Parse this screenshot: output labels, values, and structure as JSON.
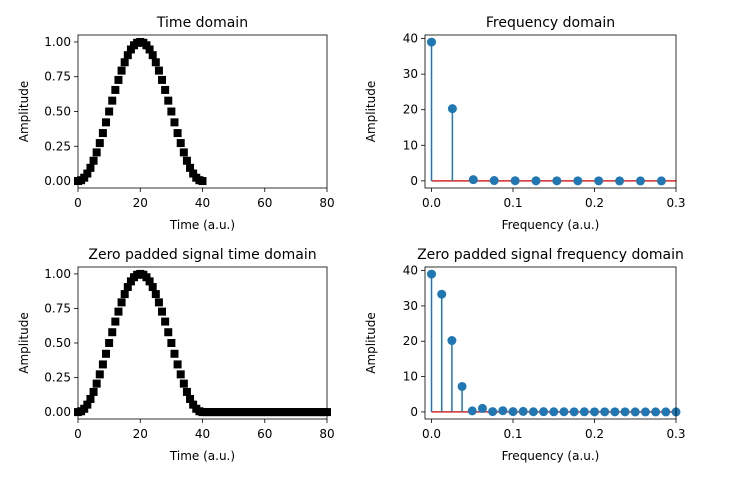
{
  "chart_data": [
    {
      "type": "scatter",
      "title": "Time domain",
      "xlabel": "Time (a.u.)",
      "ylabel": "Amplitude",
      "xlim": [
        0,
        80
      ],
      "ylim": [
        -0.05,
        1.05
      ],
      "xticks": [
        "0",
        "20",
        "40",
        "60",
        "80"
      ],
      "yticks": [
        "0.00",
        "0.25",
        "0.50",
        "0.75",
        "1.00"
      ],
      "marker": "square",
      "color": "#000000",
      "x": [
        0,
        1,
        2,
        3,
        4,
        5,
        6,
        7,
        8,
        9,
        10,
        11,
        12,
        13,
        14,
        15,
        16,
        17,
        18,
        19,
        20,
        21,
        22,
        23,
        24,
        25,
        26,
        27,
        28,
        29,
        30,
        31,
        32,
        33,
        34,
        35,
        36,
        37,
        38,
        39,
        40
      ],
      "y": [
        0.0,
        0.006,
        0.024,
        0.054,
        0.095,
        0.146,
        0.206,
        0.273,
        0.345,
        0.422,
        0.5,
        0.578,
        0.655,
        0.727,
        0.794,
        0.854,
        0.905,
        0.946,
        0.976,
        0.994,
        1.0,
        0.994,
        0.976,
        0.946,
        0.905,
        0.854,
        0.794,
        0.727,
        0.655,
        0.578,
        0.5,
        0.422,
        0.345,
        0.273,
        0.206,
        0.146,
        0.095,
        0.054,
        0.024,
        0.006,
        0.0
      ],
      "grid": false
    },
    {
      "type": "stem",
      "title": "Frequency domain",
      "xlabel": "Frequency (a.u.)",
      "ylabel": "Amplitude",
      "xlim": [
        -0.008,
        0.3
      ],
      "ylim": [
        -2,
        41
      ],
      "xticks": [
        "0.0",
        "0.1",
        "0.2",
        "0.3"
      ],
      "yticks": [
        "0",
        "10",
        "20",
        "30",
        "40"
      ],
      "stem_color": "#1f77b4",
      "baseline_color": "#d62728",
      "x": [
        0.0,
        0.0256,
        0.0513,
        0.0769,
        0.1026,
        0.1282,
        0.1538,
        0.1795,
        0.2051,
        0.2308,
        0.2564,
        0.2821
      ],
      "y": [
        39.0,
        20.3,
        0.35,
        0.1,
        0.05,
        0.03,
        0.02,
        0.01,
        0.01,
        0.0,
        0.0,
        0.0
      ],
      "grid": false
    },
    {
      "type": "scatter",
      "title": "Zero padded signal time domain",
      "xlabel": "Time (a.u.)",
      "ylabel": "Amplitude",
      "xlim": [
        0,
        80
      ],
      "ylim": [
        -0.05,
        1.05
      ],
      "xticks": [
        "0",
        "20",
        "40",
        "60",
        "80"
      ],
      "yticks": [
        "0.00",
        "0.25",
        "0.50",
        "0.75",
        "1.00"
      ],
      "marker": "square",
      "color": "#000000",
      "x": [
        0,
        1,
        2,
        3,
        4,
        5,
        6,
        7,
        8,
        9,
        10,
        11,
        12,
        13,
        14,
        15,
        16,
        17,
        18,
        19,
        20,
        21,
        22,
        23,
        24,
        25,
        26,
        27,
        28,
        29,
        30,
        31,
        32,
        33,
        34,
        35,
        36,
        37,
        38,
        39,
        40,
        41,
        42,
        43,
        44,
        45,
        46,
        47,
        48,
        49,
        50,
        51,
        52,
        53,
        54,
        55,
        56,
        57,
        58,
        59,
        60,
        61,
        62,
        63,
        64,
        65,
        66,
        67,
        68,
        69,
        70,
        71,
        72,
        73,
        74,
        75,
        76,
        77,
        78,
        79,
        80
      ],
      "y": [
        0.0,
        0.006,
        0.024,
        0.054,
        0.095,
        0.146,
        0.206,
        0.273,
        0.345,
        0.422,
        0.5,
        0.578,
        0.655,
        0.727,
        0.794,
        0.854,
        0.905,
        0.946,
        0.976,
        0.994,
        1.0,
        0.994,
        0.976,
        0.946,
        0.905,
        0.854,
        0.794,
        0.727,
        0.655,
        0.578,
        0.5,
        0.422,
        0.345,
        0.273,
        0.206,
        0.146,
        0.095,
        0.054,
        0.024,
        0.006,
        0.0,
        0,
        0,
        0,
        0,
        0,
        0,
        0,
        0,
        0,
        0,
        0,
        0,
        0,
        0,
        0,
        0,
        0,
        0,
        0,
        0,
        0,
        0,
        0,
        0,
        0,
        0,
        0,
        0,
        0,
        0,
        0,
        0,
        0,
        0,
        0,
        0,
        0,
        0,
        0,
        0
      ],
      "grid": false
    },
    {
      "type": "stem",
      "title": "Zero padded signal frequency domain",
      "xlabel": "Frequency (a.u.)",
      "ylabel": "Amplitude",
      "xlim": [
        -0.008,
        0.3
      ],
      "ylim": [
        -2,
        41
      ],
      "xticks": [
        "0.0",
        "0.1",
        "0.2",
        "0.3"
      ],
      "yticks": [
        "0",
        "10",
        "20",
        "30",
        "40"
      ],
      "stem_color": "#1f77b4",
      "baseline_color": "#d62728",
      "x": [
        0.0,
        0.0125,
        0.025,
        0.0375,
        0.05,
        0.0625,
        0.075,
        0.0875,
        0.1,
        0.1125,
        0.125,
        0.1375,
        0.15,
        0.1625,
        0.175,
        0.1875,
        0.2,
        0.2125,
        0.225,
        0.2375,
        0.25,
        0.2625,
        0.275,
        0.2875,
        0.3
      ],
      "y": [
        39.0,
        33.3,
        20.2,
        7.2,
        0.3,
        1.0,
        0.1,
        0.35,
        0.1,
        0.15,
        0.05,
        0.08,
        0.04,
        0.05,
        0.03,
        0.04,
        0.02,
        0.03,
        0.02,
        0.02,
        0.01,
        0.01,
        0.01,
        0.01,
        0.01
      ],
      "grid": false
    }
  ]
}
